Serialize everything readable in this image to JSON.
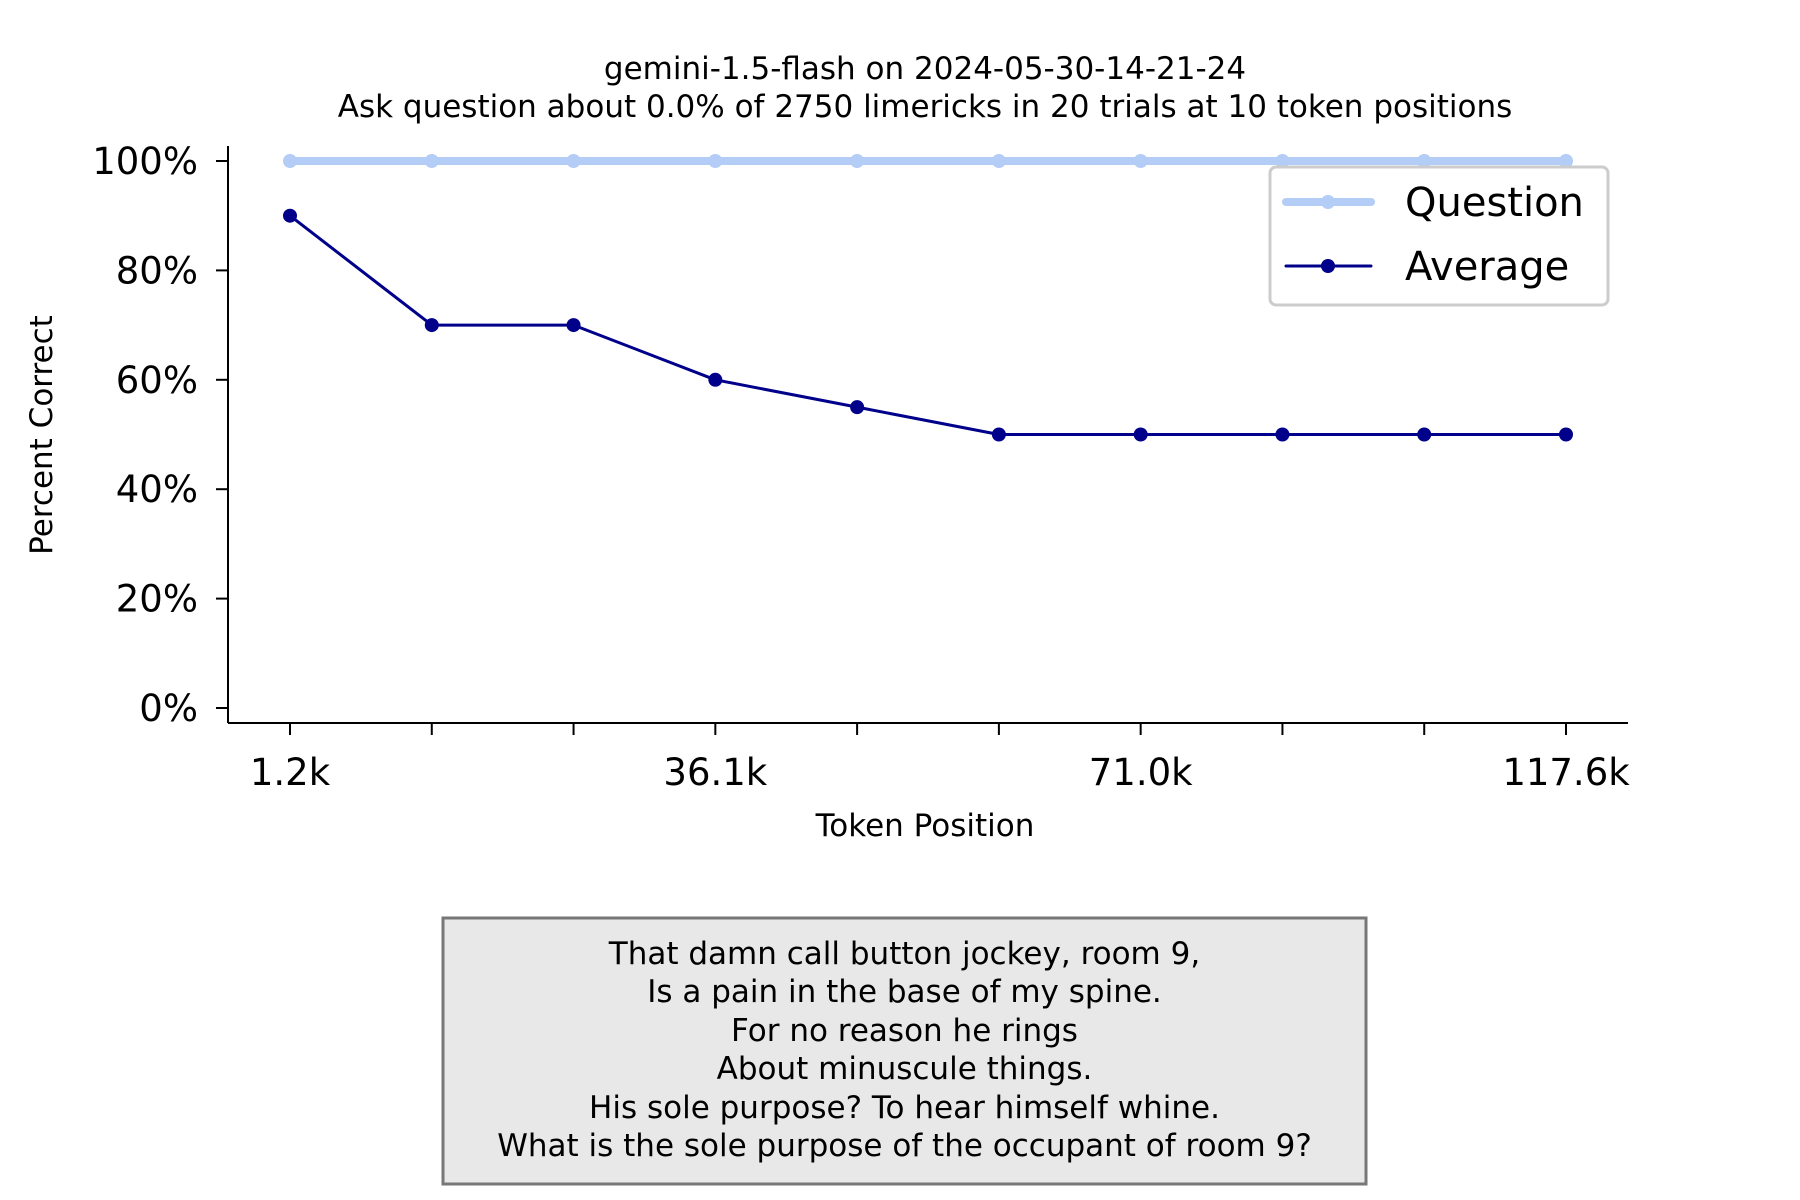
{
  "chart_data": {
    "type": "line",
    "title": "gemini-1.5-flash on 2024-05-30-14-21-24",
    "subtitle": "Ask question about 0.0% of 2750 limericks in 20 trials at 10 token positions",
    "xlabel": "Token Position",
    "ylabel": "Percent Correct",
    "x": [
      1.2,
      13.2,
      25.1,
      36.1,
      47.8,
      59.5,
      71.0,
      82.7,
      94.4,
      117.6
    ],
    "xtick_values": [
      1.2,
      13.2,
      25.1,
      36.1,
      47.8,
      59.5,
      71.0,
      82.7,
      94.4,
      117.6
    ],
    "xtick_labels": [
      "1.2k",
      "",
      "",
      "36.1k",
      "",
      "",
      "71.0k",
      "",
      "",
      "117.6k"
    ],
    "ylim": [
      0,
      100
    ],
    "yticks": [
      0,
      20,
      40,
      60,
      80,
      100
    ],
    "ytick_labels": [
      "0%",
      "20%",
      "40%",
      "60%",
      "80%",
      "100%"
    ],
    "grid": false,
    "legend_position": "top-right",
    "series": [
      {
        "name": "Question",
        "color": "#b3cdf7",
        "values": [
          100,
          100,
          100,
          100,
          100,
          100,
          100,
          100,
          100,
          100
        ]
      },
      {
        "name": "Average",
        "color": "#00008b",
        "values": [
          90,
          70,
          70,
          60,
          55,
          50,
          50,
          50,
          50,
          50
        ]
      }
    ]
  },
  "limerick_box": {
    "lines": [
      "That damn call button jockey, room 9,",
      "Is a pain in the base of my spine.",
      "For no reason he rings",
      "About minuscule things.",
      "His sole purpose? To hear himself whine.",
      "What is the sole purpose of the occupant of room 9?"
    ]
  }
}
